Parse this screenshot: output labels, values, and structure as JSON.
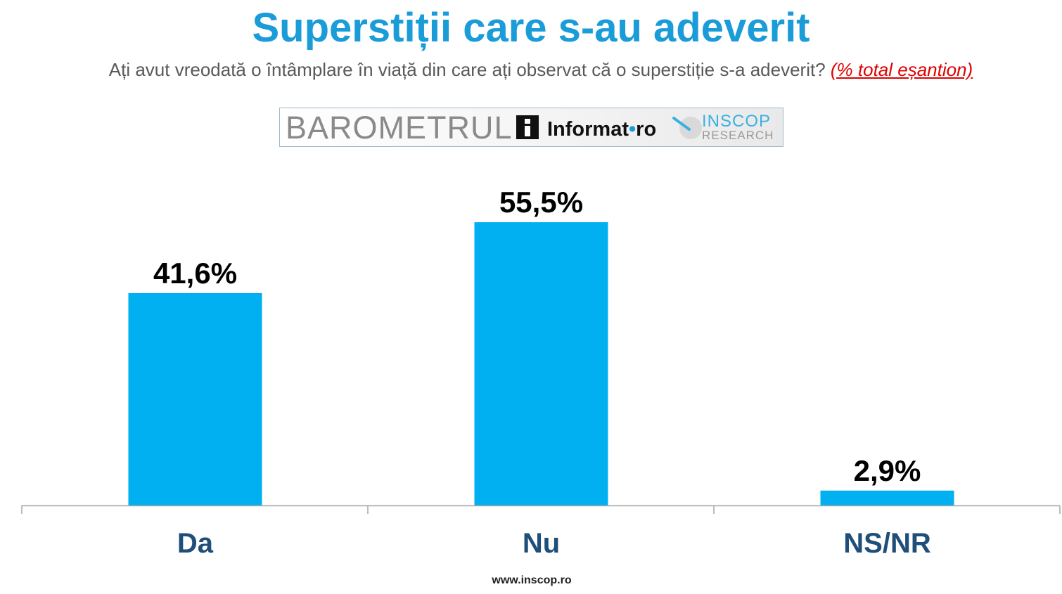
{
  "title": "Superstiții care s-au adeverit",
  "subtitle": {
    "question": "Ați avut vreodată o întâmplare în viață din care ați observat că o superstiție s-a adeverit?",
    "note": "(% total eșantion)"
  },
  "logo": {
    "barometrul": "BAROMETRUL",
    "informat_name": "Informat",
    "informat_sep": "•",
    "informat_tld": "ro",
    "inscop": "INSCOP",
    "research": "RESEARCH"
  },
  "chart_data": {
    "type": "bar",
    "categories": [
      "Da",
      "Nu",
      "NS/NR"
    ],
    "values": [
      41.6,
      55.5,
      2.9
    ],
    "data_labels": [
      "41,6%",
      "55,5%",
      "2,9%"
    ],
    "title": "",
    "xlabel": "",
    "ylabel": "",
    "ylim": [
      0,
      60
    ],
    "grid": false,
    "legend": "none",
    "colors": {
      "bar": "#00b0f0",
      "category_label": "#1f4e79",
      "axis": "#a6a6a6"
    }
  },
  "footer": "www.inscop.ro"
}
